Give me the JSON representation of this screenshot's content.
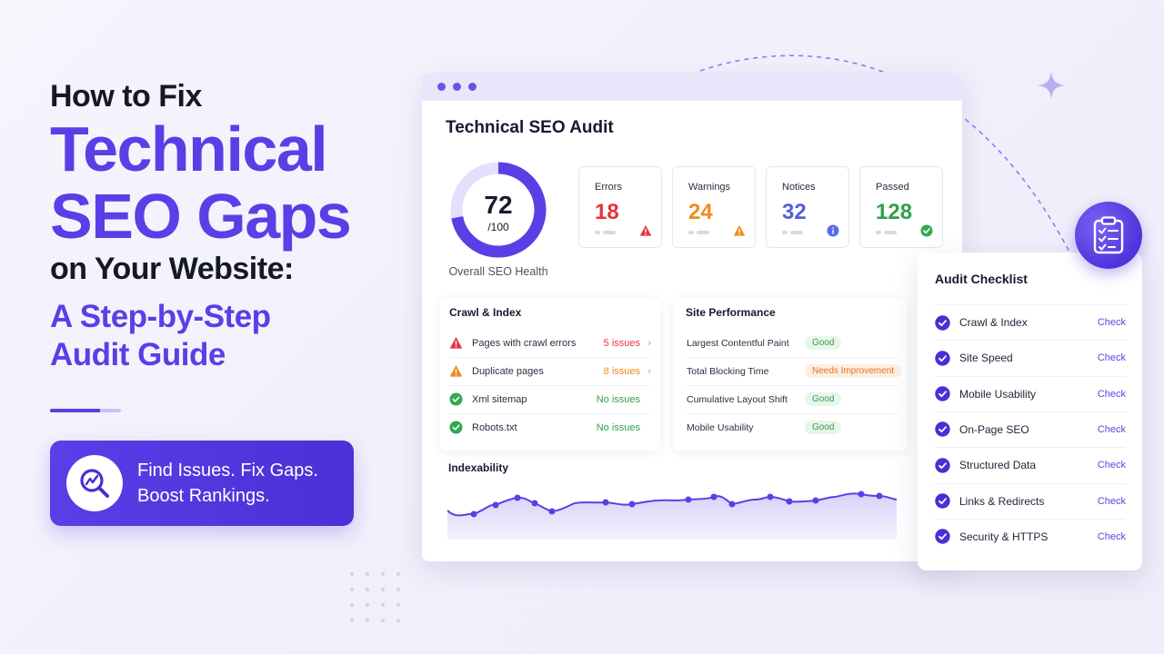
{
  "hero": {
    "line1": "How to Fix",
    "line2": "Technical",
    "line3": "SEO Gaps",
    "line4": "on Your Website:",
    "sub1": "A Step-by-Step",
    "sub2": "Audit Guide",
    "cta_line1": "Find Issues. Fix Gaps.",
    "cta_line2": "Boost Rankings."
  },
  "audit": {
    "title": "Technical SEO Audit",
    "score": "72",
    "score_max": "/100",
    "score_fraction": 0.72,
    "score_label": "Overall SEO Health",
    "stats": [
      {
        "label": "Errors",
        "value": "18",
        "color": "#e5343f",
        "icon": "warning-triangle-icon"
      },
      {
        "label": "Warnings",
        "value": "24",
        "color": "#f08a1c",
        "icon": "warning-triangle-icon"
      },
      {
        "label": "Notices",
        "value": "32",
        "color": "#5360d9",
        "icon": "info-circle-icon"
      },
      {
        "label": "Passed",
        "value": "128",
        "color": "#30a048",
        "icon": "check-circle-icon"
      }
    ],
    "crawl": {
      "title": "Crawl & Index",
      "rows": [
        {
          "label": "Pages with crawl errors",
          "value": "5 issues",
          "status": "error"
        },
        {
          "label": "Duplicate pages",
          "value": "8 issues",
          "status": "warning"
        },
        {
          "label": "Xml sitemap",
          "value": "No issues",
          "status": "ok"
        },
        {
          "label": "Robots.txt",
          "value": "No issues",
          "status": "ok"
        }
      ]
    },
    "performance": {
      "title": "Site Performance",
      "rows": [
        {
          "label": "Largest Contentful Paint",
          "badge": "Good",
          "status": "good"
        },
        {
          "label": "Total Blocking Time",
          "badge": "Needs Improvement",
          "status": "warn"
        },
        {
          "label": "Cumulative Layout Shift",
          "badge": "Good",
          "status": "good"
        },
        {
          "label": "Mobile Usability",
          "badge": "Good",
          "status": "good"
        }
      ]
    },
    "indexability_title": "Indexability"
  },
  "checklist": {
    "title": "Audit Checklist",
    "action_label": "Check",
    "items": [
      "Crawl & Index",
      "Site Speed",
      "Mobile Usability",
      "On-Page SEO",
      "Structured Data",
      "Links & Redirects",
      "Security & HTTPS"
    ]
  },
  "colors": {
    "accent": "#5b3ee6",
    "error": "#e5343f",
    "warning": "#f08a1c",
    "ok": "#30a048"
  }
}
